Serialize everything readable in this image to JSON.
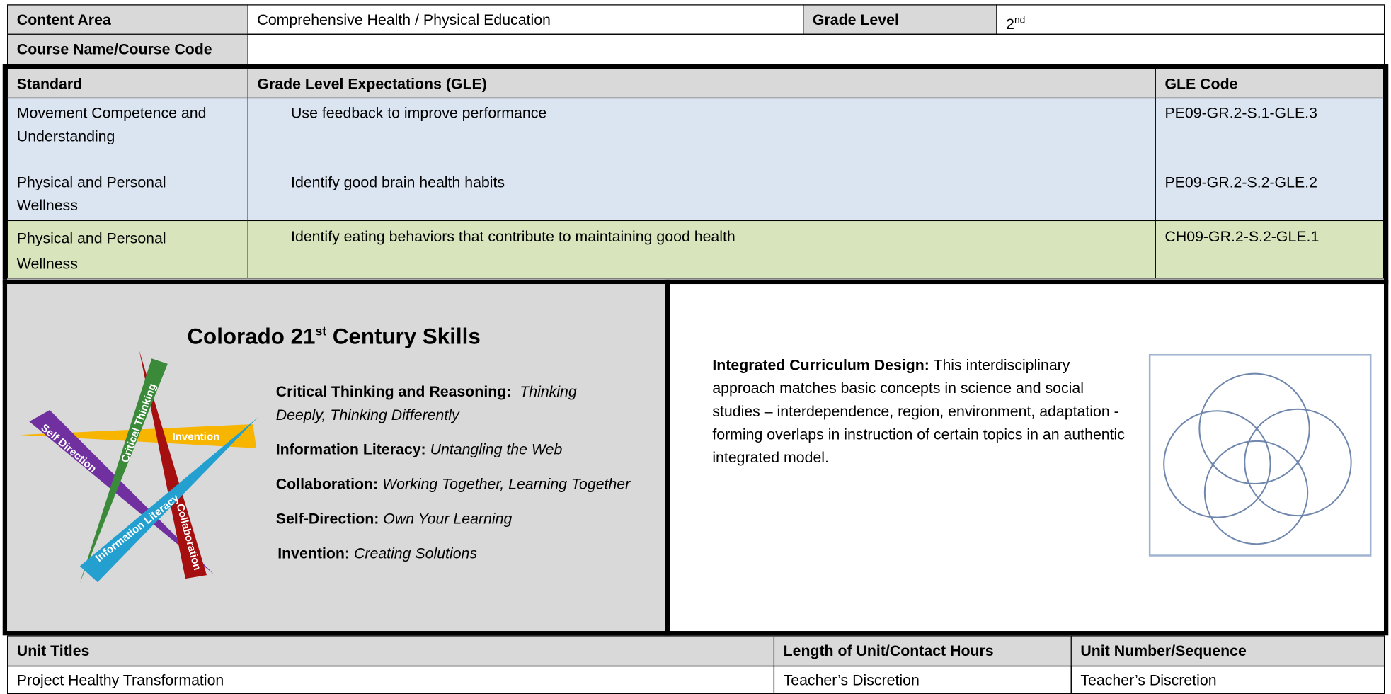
{
  "header": {
    "content_area_label": "Content Area",
    "content_area": "Comprehensive Health / Physical Education",
    "grade_level_label": "Grade Level",
    "grade_level": "2",
    "grade_level_sup": "nd",
    "course_label": "Course Name/Course Code"
  },
  "standards": {
    "headers": [
      "Standard",
      "Grade Level Expectations (GLE)",
      "GLE Code"
    ],
    "rows": [
      [
        "Movement Competence and Understanding",
        "Use feedback to improve performance",
        "PE09-GR.2-S.1-GLE.3"
      ],
      [
        "Physical and Personal Wellness",
        "Identify good brain health habits",
        "PE09-GR.2-S.2-GLE.2"
      ],
      [
        "Physical and Personal Wellness",
        "Identify eating behaviors that contribute to maintaining good health",
        "CH09-GR.2-S.2-GLE.1"
      ]
    ]
  },
  "skills": {
    "title_start": "Colorado 21",
    "title_sup": "st",
    "title_end": " Century Skills",
    "star_labels": [
      "Critical Thinking",
      "Invention",
      "Self Direction",
      "Information Literacy",
      "Collaboration"
    ],
    "items": [
      {
        "name": "Critical Thinking and Reasoning:",
        "desc": "Thinking Deeply, Thinking Differently"
      },
      {
        "name": "Information Literacy:",
        "desc": "Untangling the Web"
      },
      {
        "name": "Collaboration:",
        "desc": "Working Together, Learning Together"
      },
      {
        "name": "Self-Direction:",
        "desc": "Own Your Learning"
      },
      {
        "name": "Invention:",
        "desc": "Creating Solutions"
      }
    ]
  },
  "integrated": {
    "label": "Integrated Curriculum Design:",
    "text": "This interdisciplinary approach matches basic concepts in science and social studies – interdependence, region, environment, adaptation - forming overlaps in instruction of certain topics in an authentic integrated model."
  },
  "units": {
    "headers": [
      "Unit Titles",
      "Length of Unit/Contact Hours",
      "Unit Number/Sequence"
    ],
    "rows": [
      [
        "Project Healthy Transformation",
        "Teacher’s Discretion",
        "Teacher’s Discretion"
      ]
    ]
  }
}
